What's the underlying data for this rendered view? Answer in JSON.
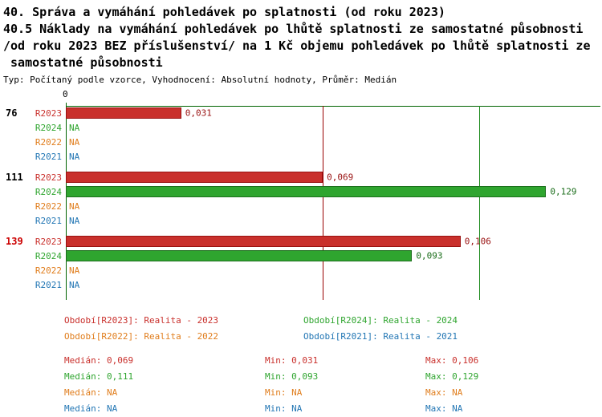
{
  "title_lines": [
    "40. Správa a vymáhání pohledávek po splatnosti (od roku 2023)",
    "40.5 Náklady na vymáhání pohledávek po lhůtě splatnosti ze samostatné působnosti",
    "/od roku 2023 BEZ příslušenství/ na 1 Kč objemu pohledávek po lhůtě splatnosti ze",
    " samostatné působnosti"
  ],
  "subtitle": "Typ: Počítaný podle vzorce, Vyhodnocení: Absolutní hodnoty, Průměr: Medián",
  "colors": {
    "axis": "#006400",
    "median_2023": "#990000",
    "median_2024": "#1f8c1f",
    "group_id_default": "#000000",
    "group_id_highlight": "#cc0000"
  },
  "series_colors": {
    "R2023": {
      "bar": "#c9302c",
      "text": "#991111"
    },
    "R2024": {
      "bar": "#2fa52f",
      "text": "#1c6e1c"
    },
    "R2022": {
      "bar": "#e07d1c",
      "text": "#e07d1c"
    },
    "R2021": {
      "bar": "#2276b4",
      "text": "#2276b4"
    }
  },
  "chart_data": {
    "type": "bar",
    "orientation": "horizontal",
    "xlim": [
      0,
      0.144
    ],
    "x_zero_label": "0",
    "grid": "median-reference-lines",
    "median_lines": [
      {
        "series": "R2023",
        "value": 0.069,
        "color": "#990000"
      },
      {
        "series": "R2024",
        "value": 0.111,
        "color": "#1f8c1f"
      }
    ],
    "groups": [
      {
        "id": "76",
        "id_color": "#000000",
        "rows": [
          {
            "period": "R2023",
            "value": 0.031,
            "display": "0,031"
          },
          {
            "period": "R2024",
            "value": null,
            "display": "NA"
          },
          {
            "period": "R2022",
            "value": null,
            "display": "NA"
          },
          {
            "period": "R2021",
            "value": null,
            "display": "NA"
          }
        ]
      },
      {
        "id": "111",
        "id_color": "#000000",
        "rows": [
          {
            "period": "R2023",
            "value": 0.069,
            "display": "0,069"
          },
          {
            "period": "R2024",
            "value": 0.129,
            "display": "0,129"
          },
          {
            "period": "R2022",
            "value": null,
            "display": "NA"
          },
          {
            "period": "R2021",
            "value": null,
            "display": "NA"
          }
        ]
      },
      {
        "id": "139",
        "id_color": "#cc0000",
        "rows": [
          {
            "period": "R2023",
            "value": 0.106,
            "display": "0,106"
          },
          {
            "period": "R2024",
            "value": 0.093,
            "display": "0,093"
          },
          {
            "period": "R2022",
            "value": null,
            "display": "NA"
          },
          {
            "period": "R2021",
            "value": null,
            "display": "NA"
          }
        ]
      }
    ]
  },
  "legend": [
    {
      "period": "R2023",
      "label": "Období[R2023]: Realita - 2023"
    },
    {
      "period": "R2024",
      "label": "Období[R2024]: Realita - 2024"
    },
    {
      "period": "R2022",
      "label": "Období[R2022]: Realita - 2022"
    },
    {
      "period": "R2021",
      "label": "Období[R2021]: Realita - 2021"
    }
  ],
  "stats_labels": {
    "median": "Medián",
    "min": "Min",
    "max": "Max"
  },
  "stats": [
    {
      "period": "R2023",
      "median": "0,069",
      "min": "0,031",
      "max": "0,106"
    },
    {
      "period": "R2024",
      "median": "0,111",
      "min": "0,093",
      "max": "0,129"
    },
    {
      "period": "R2022",
      "median": "NA",
      "min": "NA",
      "max": "NA"
    },
    {
      "period": "R2021",
      "median": "NA",
      "min": "NA",
      "max": "NA"
    }
  ]
}
